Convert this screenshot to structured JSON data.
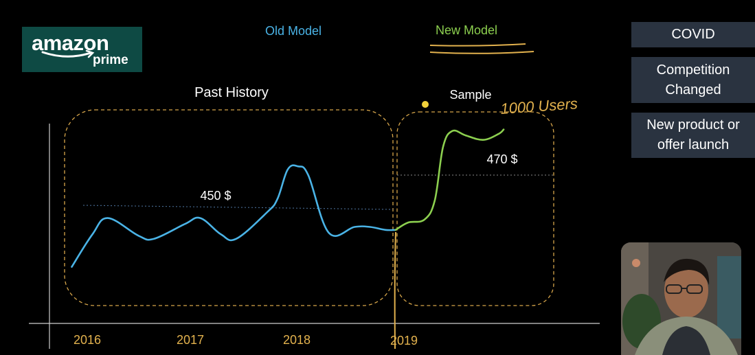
{
  "logo": {
    "line1": "amazon",
    "line2": "prime",
    "bg_color": "#0e4a44"
  },
  "legend": {
    "old_model": "Old Model",
    "new_model": "New Model"
  },
  "side_panel": [
    {
      "label": "COVID"
    },
    {
      "label": "Competition\nChanged"
    },
    {
      "label": "New product or\noffer launch"
    }
  ],
  "chart_data": {
    "type": "line",
    "x_tick_labels": [
      "2016",
      "2017",
      "2018",
      "2019"
    ],
    "regions": [
      {
        "label": "Past History"
      },
      {
        "label": "Sample"
      }
    ],
    "annotations": {
      "past_level": "450 $",
      "sample_level": "470 $",
      "handwritten": "1000 Users"
    },
    "series": [
      {
        "name": "Old Model",
        "color": "#4ab3e6",
        "x": [
          2015.85,
          2016.05,
          2016.2,
          2016.5,
          2016.65,
          2016.95,
          2017.1,
          2017.3,
          2017.45,
          2017.75,
          2017.85,
          2017.95,
          2018.05,
          2018.15,
          2018.35,
          2018.6,
          2018.75,
          2018.9,
          2019.0
        ],
        "y": [
          403,
          425,
          436,
          424,
          422,
          432,
          436,
          425,
          422,
          440,
          449,
          469,
          471,
          465,
          426,
          430,
          430,
          428,
          428
        ]
      },
      {
        "name": "New Model",
        "color": "#8ccf4f",
        "x": [
          2019.0,
          2019.12,
          2019.28,
          2019.38,
          2019.46,
          2019.55,
          2019.68,
          2019.85,
          2020.0,
          2020.05
        ],
        "y": [
          428,
          433,
          435,
          448,
          484,
          495,
          492,
          489,
          493,
          496
        ]
      }
    ],
    "reference_lines": [
      {
        "label": "450 $",
        "y": 451,
        "x_from": 2016.0,
        "x_to": 2019.0
      },
      {
        "label": "470 $",
        "y": 465,
        "x_from": 2019.0,
        "x_to": 2020.25
      }
    ],
    "colors": {
      "region_border": "#d6a54a",
      "axis": "#cfcfcf",
      "marker": "#f2d23a"
    }
  }
}
